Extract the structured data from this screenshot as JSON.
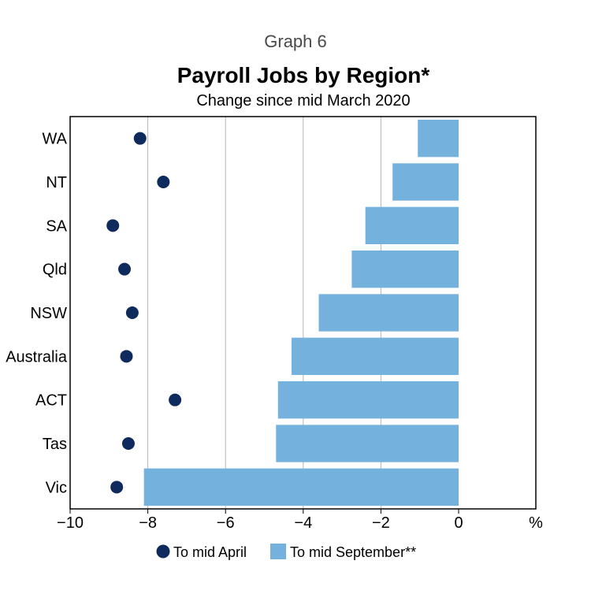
{
  "graph_number": "Graph 6",
  "chart_data": {
    "type": "bar",
    "orientation": "horizontal",
    "title": "Payroll Jobs by Region*",
    "subtitle": "Change since mid March 2020",
    "unit": "%",
    "categories": [
      "WA",
      "NT",
      "SA",
      "Qld",
      "NSW",
      "Australia",
      "ACT",
      "Tas",
      "Vic"
    ],
    "series": [
      {
        "name": "To mid April",
        "mark": "dot",
        "color": "#0f2a5c",
        "values": [
          -8.2,
          -7.6,
          -8.9,
          -8.6,
          -8.4,
          -8.55,
          -7.3,
          -8.5,
          -8.8
        ]
      },
      {
        "name": "To mid September**",
        "mark": "bar",
        "color": "#74b1dd",
        "values": [
          -1.05,
          -1.7,
          -2.4,
          -2.75,
          -3.6,
          -4.3,
          -4.65,
          -4.7,
          -8.1
        ]
      }
    ],
    "xlim": [
      -10,
      0
    ],
    "xticks": [
      -10,
      -8,
      -6,
      -4,
      -2,
      0
    ],
    "grid": true,
    "legend": "bottom"
  }
}
